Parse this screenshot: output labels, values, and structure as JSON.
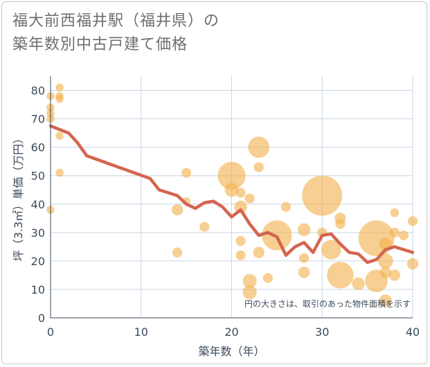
{
  "title_line1": "福大前西福井駅（福井県）の",
  "title_line2": "築年数別中古戸建て価格",
  "chart_data": {
    "type": "scatter",
    "xlabel": "築年数（年）",
    "ylabel": "坪（3.3㎡）単価（万円）",
    "xlim": [
      0,
      40
    ],
    "ylim": [
      0,
      85
    ],
    "xticks": [
      0,
      10,
      20,
      30,
      40
    ],
    "yticks": [
      0,
      10,
      20,
      30,
      40,
      50,
      60,
      70,
      80
    ],
    "note": "円の大きさは、取引のあった物件面積を示す",
    "colors": {
      "bubble": "#f2b24f",
      "line": "#d4654e",
      "grid": "#c9d6e3"
    },
    "points": [
      {
        "x": 0,
        "y": 78,
        "s": 1
      },
      {
        "x": 0,
        "y": 74,
        "s": 1
      },
      {
        "x": 0,
        "y": 72,
        "s": 1
      },
      {
        "x": 0,
        "y": 70,
        "s": 1
      },
      {
        "x": 0,
        "y": 38,
        "s": 1
      },
      {
        "x": 1,
        "y": 81,
        "s": 1
      },
      {
        "x": 1,
        "y": 78,
        "s": 1
      },
      {
        "x": 1,
        "y": 77,
        "s": 1
      },
      {
        "x": 1,
        "y": 64,
        "s": 1
      },
      {
        "x": 1,
        "y": 51,
        "s": 1
      },
      {
        "x": 14,
        "y": 38,
        "s": 2
      },
      {
        "x": 14,
        "y": 23,
        "s": 1.5
      },
      {
        "x": 15,
        "y": 51,
        "s": 1.5
      },
      {
        "x": 15,
        "y": 41,
        "s": 1
      },
      {
        "x": 17,
        "y": 32,
        "s": 1.5
      },
      {
        "x": 20,
        "y": 50,
        "s": 12
      },
      {
        "x": 20,
        "y": 45,
        "s": 3
      },
      {
        "x": 21,
        "y": 44,
        "s": 1.5
      },
      {
        "x": 21,
        "y": 39,
        "s": 2.5
      },
      {
        "x": 21,
        "y": 27,
        "s": 1.5
      },
      {
        "x": 21,
        "y": 22,
        "s": 1.5
      },
      {
        "x": 22,
        "y": 42,
        "s": 1.5
      },
      {
        "x": 22,
        "y": 13,
        "s": 3
      },
      {
        "x": 22,
        "y": 9,
        "s": 3
      },
      {
        "x": 23,
        "y": 60,
        "s": 7
      },
      {
        "x": 23,
        "y": 53,
        "s": 1.5
      },
      {
        "x": 23,
        "y": 23,
        "s": 2
      },
      {
        "x": 24,
        "y": 14,
        "s": 1.5
      },
      {
        "x": 25,
        "y": 29,
        "s": 14
      },
      {
        "x": 26,
        "y": 39,
        "s": 1.5
      },
      {
        "x": 28,
        "y": 31,
        "s": 2.5
      },
      {
        "x": 28,
        "y": 21,
        "s": 1.5
      },
      {
        "x": 28,
        "y": 16,
        "s": 2
      },
      {
        "x": 30,
        "y": 43,
        "s": 25
      },
      {
        "x": 30,
        "y": 30,
        "s": 1.5
      },
      {
        "x": 31,
        "y": 24,
        "s": 6
      },
      {
        "x": 32,
        "y": 35,
        "s": 2
      },
      {
        "x": 32,
        "y": 33,
        "s": 1.5
      },
      {
        "x": 32,
        "y": 15,
        "s": 11
      },
      {
        "x": 34,
        "y": 12,
        "s": 2.5
      },
      {
        "x": 36,
        "y": 28,
        "s": 20
      },
      {
        "x": 36,
        "y": 13,
        "s": 8
      },
      {
        "x": 37,
        "y": 26,
        "s": 2.5
      },
      {
        "x": 37,
        "y": 20,
        "s": 3.5
      },
      {
        "x": 37,
        "y": 16,
        "s": 2
      },
      {
        "x": 37,
        "y": 6,
        "s": 2.5
      },
      {
        "x": 38,
        "y": 37,
        "s": 1.2
      },
      {
        "x": 38,
        "y": 30,
        "s": 1.5
      },
      {
        "x": 38,
        "y": 15,
        "s": 2
      },
      {
        "x": 39,
        "y": 29,
        "s": 1.5
      },
      {
        "x": 40,
        "y": 34,
        "s": 1.5
      },
      {
        "x": 40,
        "y": 19,
        "s": 2
      }
    ],
    "trend": [
      [
        0,
        67.5
      ],
      [
        2,
        65
      ],
      [
        3,
        61.5
      ],
      [
        4,
        57
      ],
      [
        11,
        49
      ],
      [
        12,
        45
      ],
      [
        14,
        43
      ],
      [
        15,
        40
      ],
      [
        16,
        38.5
      ],
      [
        17,
        40.5
      ],
      [
        18,
        41
      ],
      [
        19,
        39
      ],
      [
        20,
        35.5
      ],
      [
        21,
        38
      ],
      [
        22,
        33
      ],
      [
        23,
        29
      ],
      [
        24,
        30
      ],
      [
        25,
        28.5
      ],
      [
        26,
        22
      ],
      [
        27,
        25
      ],
      [
        28,
        26.5
      ],
      [
        29,
        23
      ],
      [
        30,
        29
      ],
      [
        31,
        29.5
      ],
      [
        32,
        26
      ],
      [
        33,
        23
      ],
      [
        34,
        22.5
      ],
      [
        35,
        19.5
      ],
      [
        36,
        20.5
      ],
      [
        37,
        24
      ],
      [
        38,
        25
      ],
      [
        40,
        23
      ]
    ]
  }
}
